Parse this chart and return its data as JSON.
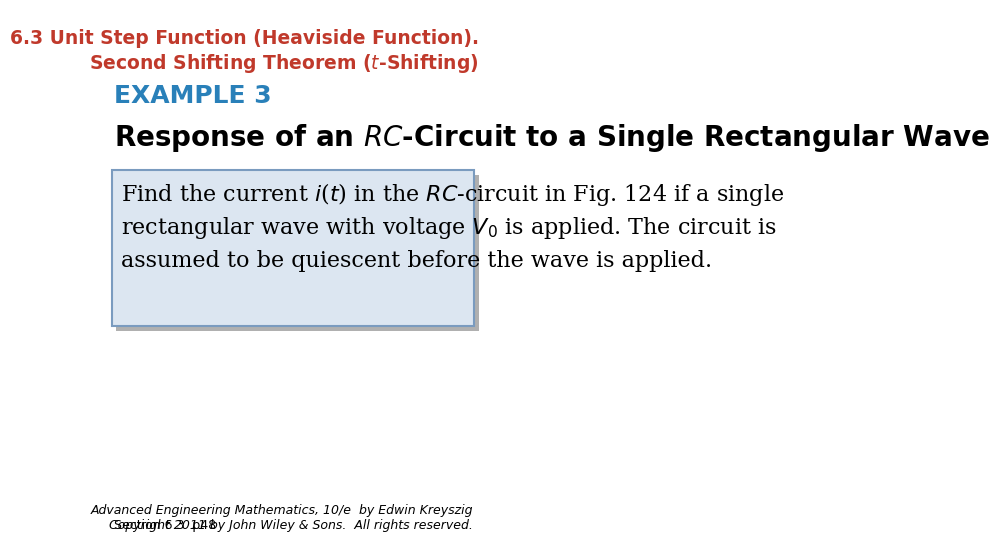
{
  "bg_color": "#ffffff",
  "header_text_line1": "6.3 Unit Step Function (Heaviside Function).",
  "header_color": "#c0392b",
  "header_fontsize": 13.5,
  "example_label": "EXAMPLE 3",
  "example_color": "#2980b9",
  "example_fontsize": 18,
  "subtitle_fontsize": 20,
  "box_bg": "#dce6f1",
  "box_border": "#7a9bbf",
  "shadow_color": "#b0b0b0",
  "body_fontsize": 16,
  "footer_left": "Section 6.3  p48",
  "footer_right_line1": "Advanced Engineering Mathematics, 10/e  by Edwin Kreyszig",
  "footer_right_line2": "Copyright 2011 by John Wiley & Sons.  All rights reserved.",
  "footer_fontsize": 9
}
